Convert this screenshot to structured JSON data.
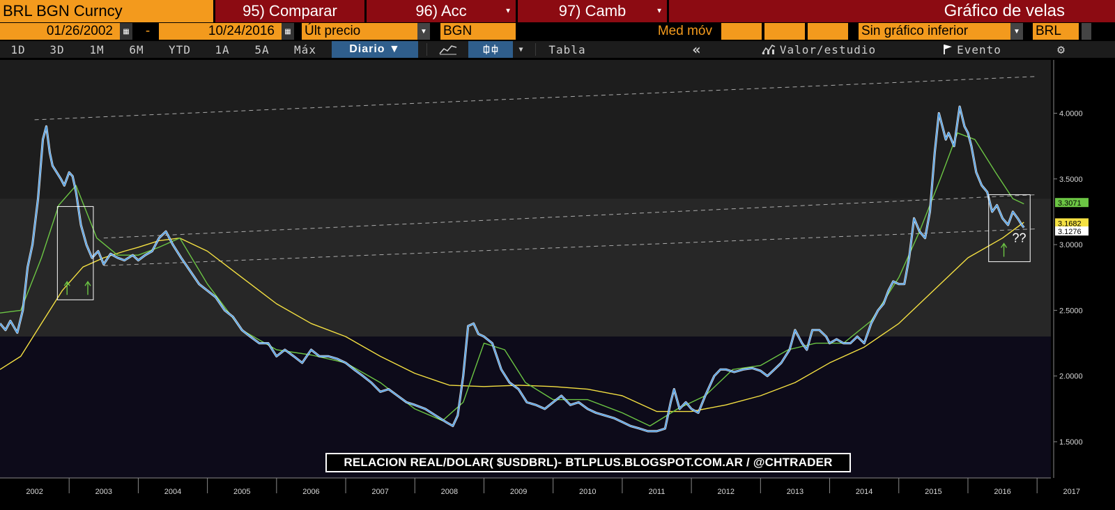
{
  "header": {
    "ticker": "BRL BGN Curncy",
    "compare": "95) Comparar",
    "actions": "96) Acc",
    "change": "97) Camb",
    "chart_title": "Gráfico de velas"
  },
  "controls": {
    "start_date": "01/26/2002",
    "dash": "-",
    "end_date": "10/24/2016",
    "price_field": "Últ precio",
    "source": "BGN",
    "moving_avg_label": "Med móv",
    "lower_chart": "Sin gráfico inferior",
    "currency": "BRL"
  },
  "toolbar": {
    "periods": [
      "1D",
      "3D",
      "1M",
      "6M",
      "YTD",
      "1A",
      "5A",
      "Máx"
    ],
    "frequency": "Diario ▼",
    "table": "Tabla",
    "collapse": "«",
    "value_study": "Valor/estudio",
    "event": "Evento",
    "icons": {
      "line": "line-chart-icon",
      "candle": "candlestick-icon",
      "settings": "gear-icon",
      "flag": "flag-icon"
    }
  },
  "colors": {
    "orange": "#f39a1d",
    "red": "#8c0b12",
    "price": "#4a9ee8",
    "ma_short": "#6cc644",
    "ma_long": "#f5e142"
  },
  "caption": "RELACION REAL/DOLAR( $USDBRL)- BTLPLUS.BLOGSPOT.COM.AR / @CHTRADER",
  "annotations": {
    "question": "??"
  },
  "chart_data": {
    "type": "line",
    "title": "",
    "xlabel": "",
    "ylabel": "",
    "ylim": [
      1.4,
      4.5
    ],
    "y_ticks": [
      "1.5000",
      "2.0000",
      "2.5000",
      "3.0000",
      "3.5000",
      "4.0000"
    ],
    "x_ticks": [
      "2002",
      "2003",
      "2004",
      "2005",
      "2006",
      "2007",
      "2008",
      "2009",
      "2010",
      "2011",
      "2012",
      "2013",
      "2014",
      "2015",
      "2016",
      "2017"
    ],
    "x_range": [
      2002.0,
      2017.2
    ],
    "last_value_labels": [
      {
        "value": "3.3071",
        "color": "#6cc644"
      },
      {
        "value": "3.1682",
        "color": "#f5e142"
      },
      {
        "value": "3.1276",
        "color": "#ffffff"
      }
    ],
    "series": [
      {
        "name": "",
        "color": "#4a9ee8",
        "x": [
          2002.0,
          2002.08,
          2002.15,
          2002.25,
          2002.33,
          2002.4,
          2002.47,
          2002.55,
          2002.62,
          2002.67,
          2002.72,
          2002.76,
          2002.82,
          2002.88,
          2002.93,
          2003.0,
          2003.05,
          2003.1,
          2003.17,
          2003.25,
          2003.33,
          2003.42,
          2003.5,
          2003.6,
          2003.7,
          2003.8,
          2003.92,
          2004.0,
          2004.1,
          2004.2,
          2004.3,
          2004.4,
          2004.5,
          2004.62,
          2004.75,
          2004.88,
          2005.0,
          2005.12,
          2005.25,
          2005.37,
          2005.5,
          2005.62,
          2005.75,
          2005.88,
          2006.0,
          2006.12,
          2006.25,
          2006.37,
          2006.5,
          2006.62,
          2006.75,
          2006.88,
          2007.0,
          2007.12,
          2007.25,
          2007.37,
          2007.5,
          2007.62,
          2007.75,
          2007.88,
          2008.0,
          2008.15,
          2008.3,
          2008.45,
          2008.55,
          2008.62,
          2008.7,
          2008.77,
          2008.85,
          2008.92,
          2009.0,
          2009.12,
          2009.25,
          2009.37,
          2009.5,
          2009.62,
          2009.75,
          2009.88,
          2010.0,
          2010.12,
          2010.25,
          2010.37,
          2010.5,
          2010.62,
          2010.75,
          2010.88,
          2011.0,
          2011.12,
          2011.25,
          2011.37,
          2011.5,
          2011.62,
          2011.7,
          2011.75,
          2011.83,
          2011.92,
          2012.0,
          2012.1,
          2012.2,
          2012.33,
          2012.42,
          2012.5,
          2012.62,
          2012.75,
          2012.88,
          2013.0,
          2013.1,
          2013.2,
          2013.3,
          2013.42,
          2013.5,
          2013.6,
          2013.67,
          2013.75,
          2013.85,
          2013.95,
          2014.0,
          2014.1,
          2014.2,
          2014.3,
          2014.4,
          2014.5,
          2014.6,
          2014.7,
          2014.78,
          2014.85,
          2014.92,
          2015.0,
          2015.08,
          2015.15,
          2015.22,
          2015.3,
          2015.38,
          2015.45,
          2015.52,
          2015.58,
          2015.63,
          2015.68,
          2015.72,
          2015.8,
          2015.88,
          2015.95,
          2016.0,
          2016.05,
          2016.12,
          2016.2,
          2016.28,
          2016.35,
          2016.42,
          2016.5,
          2016.58,
          2016.65,
          2016.72,
          2016.78,
          2016.81
        ],
        "values": [
          2.4,
          2.35,
          2.42,
          2.33,
          2.5,
          2.83,
          3.0,
          3.35,
          3.8,
          3.9,
          3.7,
          3.6,
          3.55,
          3.5,
          3.45,
          3.55,
          3.52,
          3.4,
          3.15,
          3.0,
          2.9,
          2.95,
          2.85,
          2.93,
          2.9,
          2.88,
          2.92,
          2.88,
          2.92,
          2.95,
          3.05,
          3.1,
          3.0,
          2.9,
          2.8,
          2.7,
          2.65,
          2.6,
          2.5,
          2.45,
          2.35,
          2.3,
          2.25,
          2.25,
          2.15,
          2.2,
          2.15,
          2.1,
          2.2,
          2.15,
          2.15,
          2.13,
          2.1,
          2.05,
          2.0,
          1.95,
          1.88,
          1.9,
          1.85,
          1.8,
          1.78,
          1.75,
          1.7,
          1.65,
          1.62,
          1.7,
          2.0,
          2.38,
          2.4,
          2.32,
          2.3,
          2.25,
          2.05,
          1.95,
          1.9,
          1.8,
          1.78,
          1.75,
          1.8,
          1.85,
          1.78,
          1.8,
          1.75,
          1.72,
          1.7,
          1.68,
          1.65,
          1.62,
          1.6,
          1.58,
          1.58,
          1.6,
          1.8,
          1.9,
          1.75,
          1.8,
          1.75,
          1.72,
          1.85,
          2.0,
          2.05,
          2.05,
          2.03,
          2.05,
          2.06,
          2.04,
          2.0,
          2.05,
          2.1,
          2.2,
          2.35,
          2.25,
          2.2,
          2.35,
          2.35,
          2.3,
          2.25,
          2.28,
          2.25,
          2.25,
          2.3,
          2.25,
          2.4,
          2.5,
          2.55,
          2.65,
          2.72,
          2.7,
          2.7,
          2.9,
          3.2,
          3.1,
          3.05,
          3.25,
          3.7,
          4.0,
          3.9,
          3.8,
          3.85,
          3.75,
          4.05,
          3.9,
          3.85,
          3.75,
          3.55,
          3.45,
          3.4,
          3.25,
          3.3,
          3.2,
          3.15,
          3.25,
          3.2,
          3.15,
          3.13
        ]
      },
      {
        "name": "",
        "color": "#6cc644",
        "x": [
          2002.0,
          2002.3,
          2002.6,
          2002.85,
          2003.1,
          2003.4,
          2003.7,
          2004.0,
          2004.3,
          2004.6,
          2005.0,
          2005.5,
          2006.0,
          2006.5,
          2007.0,
          2007.5,
          2008.0,
          2008.4,
          2008.7,
          2009.0,
          2009.3,
          2009.6,
          2010.0,
          2010.5,
          2011.0,
          2011.4,
          2011.8,
          2012.2,
          2012.6,
          2013.0,
          2013.4,
          2013.8,
          2014.2,
          2014.6,
          2015.0,
          2015.3,
          2015.6,
          2015.85,
          2016.1,
          2016.4,
          2016.65,
          2016.81
        ],
        "values": [
          2.48,
          2.5,
          2.9,
          3.3,
          3.45,
          3.05,
          2.92,
          2.92,
          2.98,
          3.05,
          2.7,
          2.35,
          2.2,
          2.16,
          2.1,
          1.95,
          1.75,
          1.66,
          1.8,
          2.25,
          2.2,
          1.95,
          1.82,
          1.82,
          1.72,
          1.62,
          1.75,
          1.85,
          2.05,
          2.08,
          2.2,
          2.25,
          2.25,
          2.42,
          2.75,
          3.1,
          3.5,
          3.85,
          3.8,
          3.55,
          3.35,
          3.31
        ]
      },
      {
        "name": "",
        "color": "#f5e142",
        "x": [
          2002.0,
          2002.3,
          2002.6,
          2002.9,
          2003.2,
          2003.5,
          2003.8,
          2004.0,
          2004.3,
          2004.6,
          2005.0,
          2005.5,
          2006.0,
          2006.5,
          2007.0,
          2007.5,
          2008.0,
          2008.5,
          2009.0,
          2009.5,
          2010.0,
          2010.5,
          2011.0,
          2011.5,
          2012.0,
          2012.5,
          2013.0,
          2013.5,
          2014.0,
          2014.5,
          2015.0,
          2015.5,
          2016.0,
          2016.5,
          2016.81
        ],
        "values": [
          2.05,
          2.15,
          2.4,
          2.65,
          2.83,
          2.9,
          2.95,
          2.98,
          3.03,
          3.05,
          2.95,
          2.75,
          2.55,
          2.4,
          2.3,
          2.15,
          2.02,
          1.93,
          1.92,
          1.93,
          1.92,
          1.9,
          1.85,
          1.73,
          1.73,
          1.78,
          1.85,
          1.95,
          2.1,
          2.22,
          2.4,
          2.65,
          2.9,
          3.05,
          3.17
        ]
      }
    ],
    "trendlines": [
      {
        "x": [
          2002.5,
          2017.0
        ],
        "values": [
          3.95,
          4.28
        ]
      },
      {
        "x": [
          2003.5,
          2017.0
        ],
        "values": [
          3.05,
          3.38
        ]
      },
      {
        "x": [
          2003.5,
          2017.0
        ],
        "values": [
          2.84,
          3.12
        ]
      }
    ],
    "highlight_boxes": [
      {
        "x": [
          2002.83,
          2003.35
        ],
        "values": [
          2.58,
          3.29
        ]
      },
      {
        "x": [
          2016.3,
          2016.9
        ],
        "values": [
          2.87,
          3.38
        ]
      }
    ],
    "arrows": [
      {
        "x": 2002.97,
        "value": 2.66
      },
      {
        "x": 2003.27,
        "value": 2.66
      },
      {
        "x": 2016.52,
        "value": 2.95
      }
    ]
  }
}
